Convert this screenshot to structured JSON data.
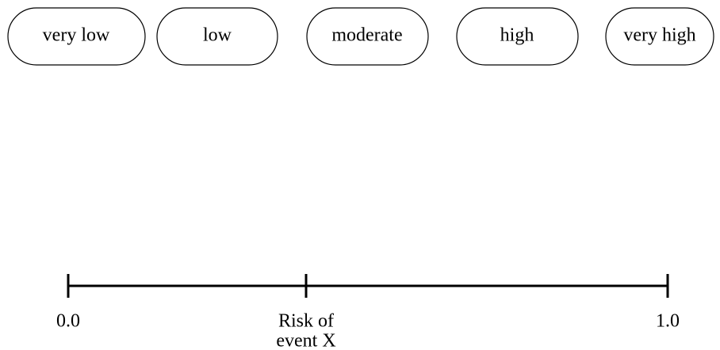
{
  "pills": [
    "very low",
    "low",
    "moderate",
    "high",
    "very high"
  ],
  "scale": {
    "start_label": "0.0",
    "middle_label": [
      "Risk of",
      "event X"
    ],
    "end_label": "1.0"
  }
}
